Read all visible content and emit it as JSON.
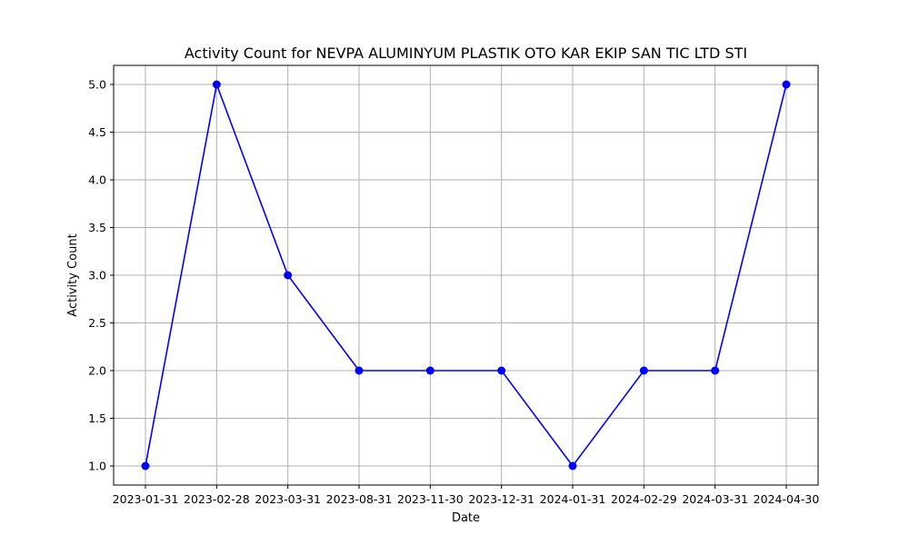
{
  "chart_data": {
    "type": "line",
    "title": "Activity Count for NEVPA ALUMINYUM PLASTIK OTO KAR EKIP SAN TIC LTD STI",
    "xlabel": "Date",
    "ylabel": "Activity Count",
    "categories": [
      "2023-01-31",
      "2023-02-28",
      "2023-03-31",
      "2023-08-31",
      "2023-11-30",
      "2023-12-31",
      "2024-01-31",
      "2024-02-29",
      "2024-03-31",
      "2024-04-30"
    ],
    "series": [
      {
        "values": [
          1,
          5,
          3,
          2,
          2,
          2,
          1,
          2,
          2,
          5
        ],
        "color": "#0000ff",
        "marker": "circle"
      }
    ],
    "yticks": [
      "1.0",
      "1.5",
      "2.0",
      "2.5",
      "3.0",
      "3.5",
      "4.0",
      "4.5",
      "5.0"
    ],
    "ylim": [
      0.8,
      5.2
    ],
    "grid": true,
    "legend": "none"
  }
}
